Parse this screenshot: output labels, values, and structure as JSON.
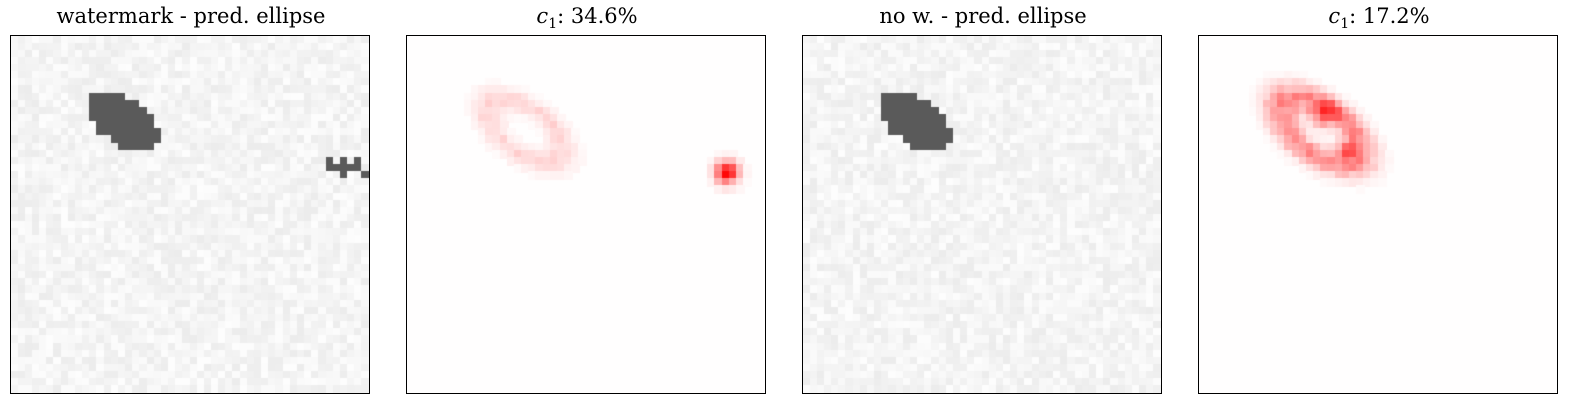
{
  "figure": {
    "panels": [
      {
        "id": "watermark-pred",
        "kind": "image",
        "title": "watermark - pred. ellipse",
        "has_watermark": true
      },
      {
        "id": "watermark-saliency",
        "kind": "heatmap",
        "title_var": "c",
        "title_sub": "1",
        "title_value": ": 34.6%"
      },
      {
        "id": "nowatermark-pred",
        "kind": "image",
        "title": "no w. - pred. ellipse",
        "has_watermark": false
      },
      {
        "id": "nowatermark-saliency",
        "kind": "heatmap",
        "title_var": "c",
        "title_sub": "1",
        "title_value": ": 17.2%"
      }
    ]
  },
  "colors": {
    "ellipse": "#5a5a5a",
    "noise_base": "#f0f0f0",
    "heat": "#ff0000",
    "frame": "#000000"
  }
}
